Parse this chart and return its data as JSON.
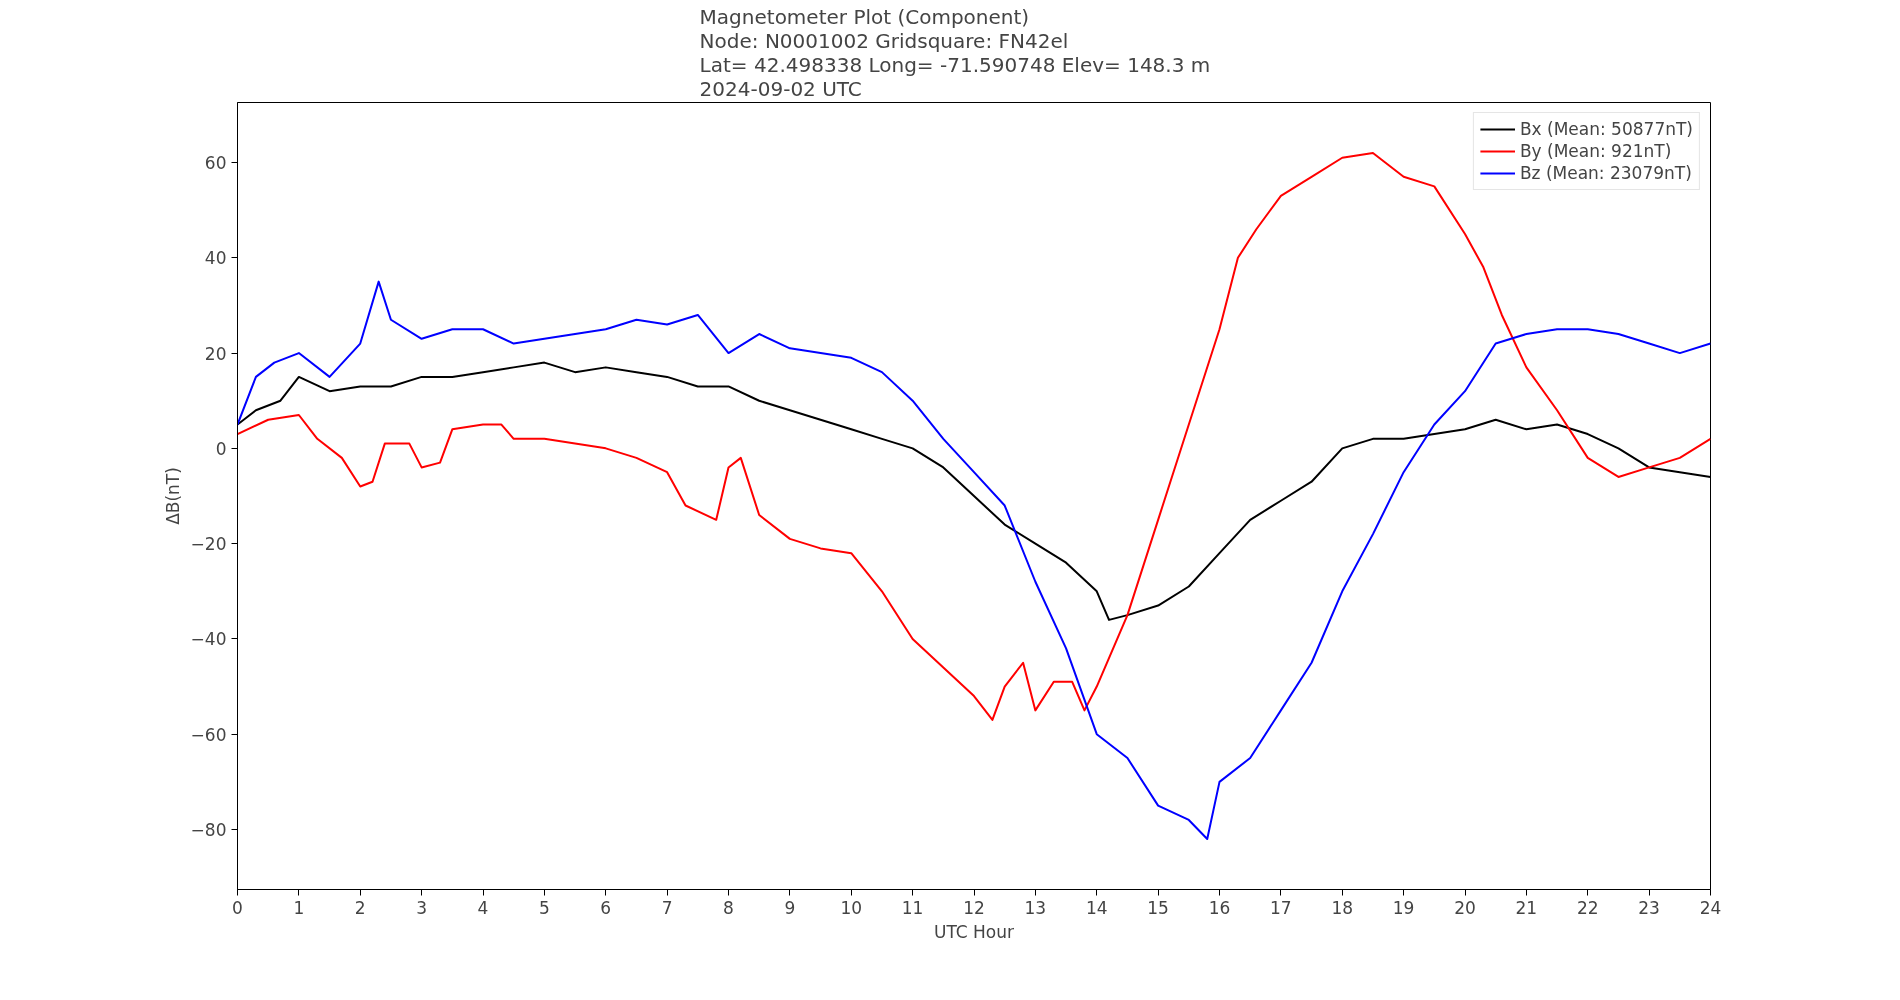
{
  "chart_data": {
    "type": "line",
    "title": "Magnetometer Plot (Component)\nNode:  N0001002     Gridsquare:  FN42el\nLat= 42.498338    Long= -71.590748    Elev= 148.3 m\n2024-09-02  UTC",
    "xlabel": "UTC Hour",
    "ylabel": "ΔB(nT)",
    "xlim": [
      0,
      24
    ],
    "ylim": [
      -92.6,
      72.6
    ],
    "xticks": [
      0,
      1,
      2,
      3,
      4,
      5,
      6,
      7,
      8,
      9,
      10,
      11,
      12,
      13,
      14,
      15,
      16,
      17,
      18,
      19,
      20,
      21,
      22,
      23,
      24
    ],
    "yticks": [
      {
        "value": -80,
        "label": "−80"
      },
      {
        "value": -60,
        "label": "−60"
      },
      {
        "value": -40,
        "label": "−40"
      },
      {
        "value": -20,
        "label": "−20"
      },
      0,
      20,
      40,
      60
    ],
    "grid": false,
    "legend": "top right",
    "line_style": "solid",
    "marker": "none",
    "series": [
      {
        "name": "Bx (Mean: 50877nT)",
        "color": "#000000",
        "x": [
          0,
          0.3,
          0.7,
          1,
          1.5,
          2,
          2.5,
          3,
          3.5,
          4,
          4.5,
          5,
          5.5,
          6,
          6.5,
          7,
          7.5,
          8,
          8.5,
          9,
          9.5,
          10,
          10.5,
          11,
          11.5,
          12,
          12.5,
          13,
          13.5,
          14,
          14.2,
          14.5,
          15,
          15.5,
          16,
          16.5,
          17,
          17.5,
          18,
          18.5,
          19,
          19.5,
          20,
          20.5,
          21,
          21.5,
          22,
          22.5,
          23,
          23.5,
          24
        ],
        "values": [
          5,
          8,
          10,
          15,
          12,
          13,
          13,
          15,
          15,
          16,
          17,
          18,
          16,
          17,
          16,
          15,
          13,
          13,
          10,
          8,
          6,
          4,
          2,
          0,
          -4,
          -10,
          -16,
          -20,
          -24,
          -30,
          -36,
          -35,
          -33,
          -29,
          -22,
          -15,
          -11,
          -7,
          0,
          2,
          2,
          3,
          4,
          6,
          4,
          5,
          3,
          0,
          -4,
          -5,
          -6
        ]
      },
      {
        "name": "By (Mean: 921nT)",
        "color": "#ff0000",
        "x": [
          0,
          0.5,
          1,
          1.3,
          1.7,
          2,
          2.2,
          2.4,
          2.8,
          3,
          3.3,
          3.5,
          4,
          4.3,
          4.5,
          5,
          5.5,
          6,
          6.5,
          7,
          7.3,
          7.8,
          8,
          8.2,
          8.5,
          9,
          9.5,
          10,
          10.5,
          11,
          11.5,
          12,
          12.3,
          12.5,
          12.8,
          13,
          13.3,
          13.6,
          13.8,
          14,
          14.5,
          15,
          15.5,
          16,
          16.3,
          16.6,
          17,
          17.5,
          18,
          18.5,
          19,
          19.5,
          20,
          20.3,
          20.6,
          21,
          21.5,
          22,
          22.5,
          23,
          23.5,
          24
        ],
        "values": [
          3,
          6,
          7,
          2,
          -2,
          -8,
          -7,
          1,
          1,
          -4,
          -3,
          4,
          5,
          5,
          2,
          2,
          1,
          0,
          -2,
          -5,
          -12,
          -15,
          -4,
          -2,
          -14,
          -19,
          -21,
          -22,
          -30,
          -40,
          -46,
          -52,
          -57,
          -50,
          -45,
          -55,
          -49,
          -49,
          -55,
          -50,
          -35,
          -15,
          5,
          25,
          40,
          46,
          53,
          57,
          61,
          62,
          57,
          55,
          45,
          38,
          28,
          17,
          8,
          -2,
          -6,
          -4,
          -2,
          2
        ]
      },
      {
        "name": "Bz (Mean: 23079nT)",
        "color": "#0000ff",
        "x": [
          0,
          0.3,
          0.6,
          1,
          1.5,
          2,
          2.3,
          2.5,
          3,
          3.5,
          4,
          4.5,
          5,
          5.5,
          6,
          6.5,
          7,
          7.5,
          8,
          8.5,
          9,
          9.5,
          10,
          10.5,
          11,
          11.5,
          12,
          12.5,
          13,
          13.5,
          14,
          14.5,
          15,
          15.5,
          15.8,
          16,
          16.5,
          17,
          17.5,
          18,
          18.5,
          19,
          19.5,
          20,
          20.5,
          21,
          21.5,
          22,
          22.5,
          23,
          23.5,
          24
        ],
        "values": [
          5,
          15,
          18,
          20,
          15,
          22,
          35,
          27,
          23,
          25,
          25,
          22,
          23,
          24,
          25,
          27,
          26,
          28,
          20,
          24,
          21,
          20,
          19,
          16,
          10,
          2,
          -5,
          -12,
          -28,
          -42,
          -60,
          -65,
          -75,
          -78,
          -82,
          -70,
          -65,
          -55,
          -45,
          -30,
          -18,
          -5,
          5,
          12,
          22,
          24,
          25,
          25,
          24,
          22,
          20,
          22
        ]
      }
    ]
  }
}
